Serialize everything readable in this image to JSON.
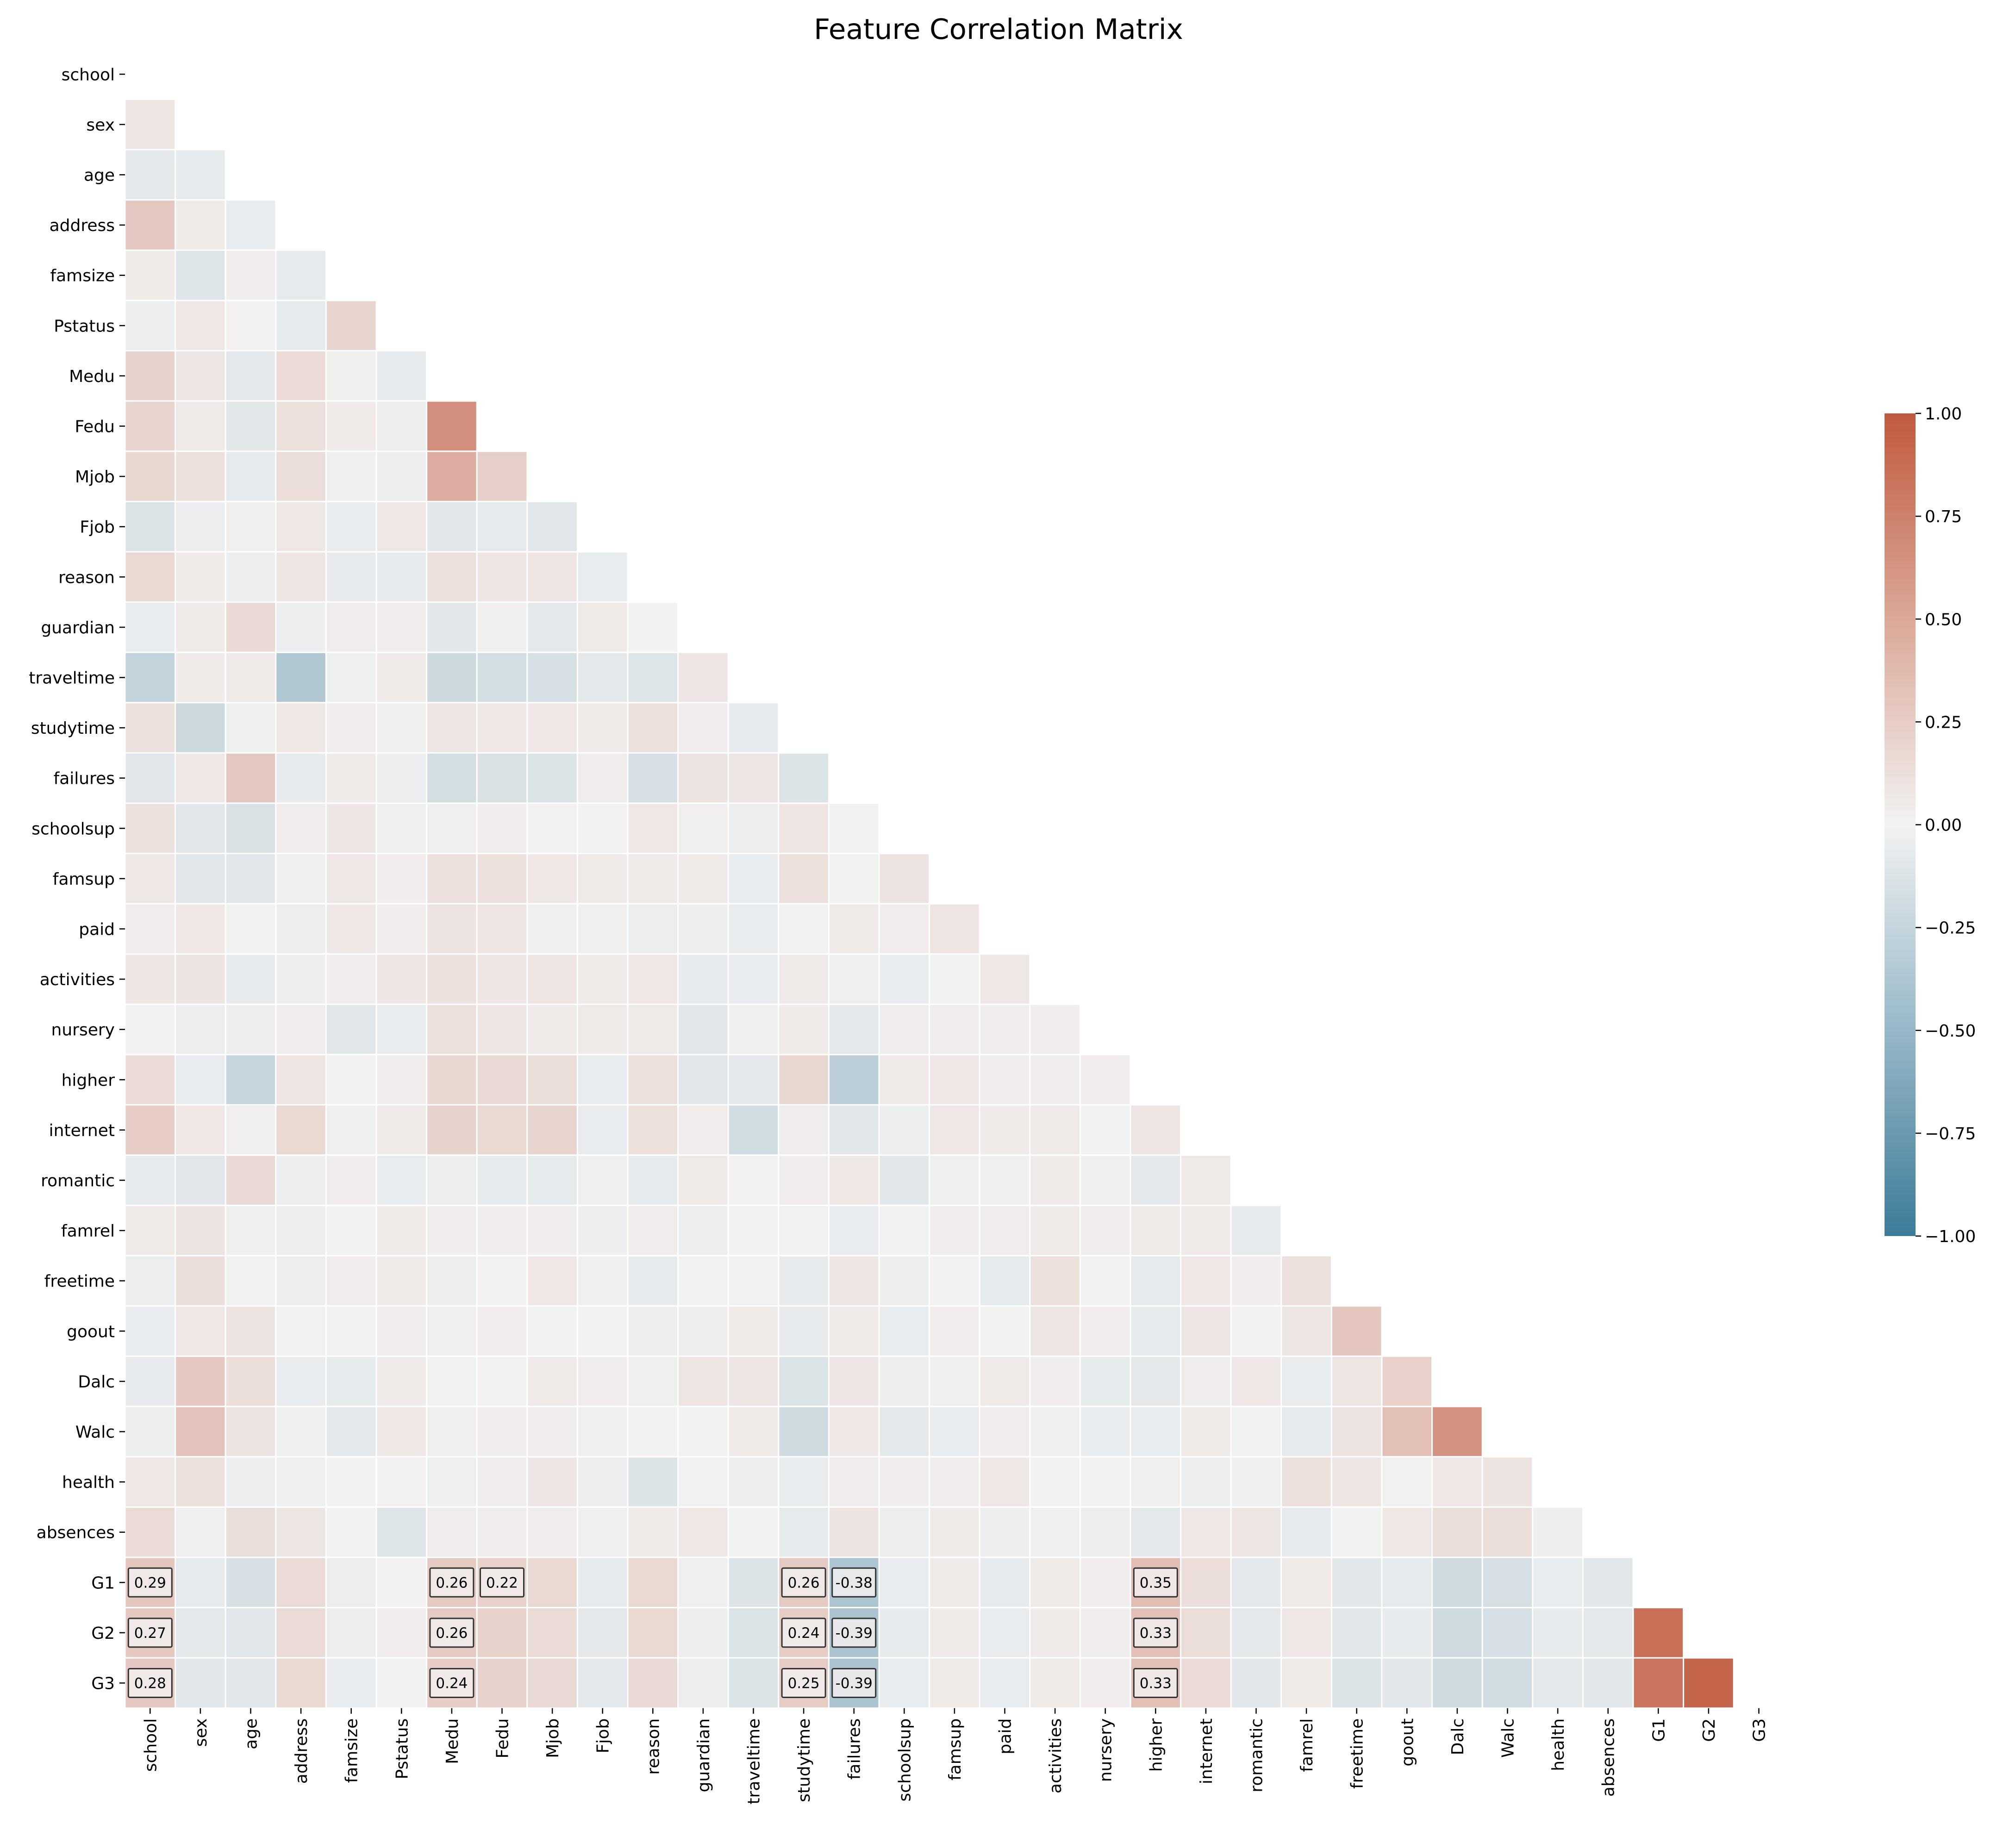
{
  "chart_data": {
    "type": "heatmap",
    "title": "Feature Correlation Matrix",
    "mask": "upper triangle incl. diagonal",
    "labels": [
      "school",
      "sex",
      "age",
      "address",
      "famsize",
      "Pstatus",
      "Medu",
      "Fedu",
      "Mjob",
      "Fjob",
      "reason",
      "guardian",
      "traveltime",
      "studytime",
      "failures",
      "schoolsup",
      "famsup",
      "paid",
      "activities",
      "nursery",
      "higher",
      "internet",
      "romantic",
      "famrel",
      "freetime",
      "goout",
      "Dalc",
      "Walc",
      "health",
      "absences",
      "G1",
      "G2",
      "G3"
    ],
    "colormap": {
      "negative": "#3d7b98",
      "zero": "#f2f2f2",
      "positive": "#c05a3e"
    },
    "colorbar": {
      "range": [
        -1,
        1
      ],
      "ticks": [
        1.0,
        0.75,
        0.5,
        0.25,
        0.0,
        -0.25,
        -0.5,
        -0.75,
        -1.0
      ],
      "tick_labels": [
        "1.00",
        "0.75",
        "0.50",
        "0.25",
        "0.00",
        "−0.25",
        "−0.50",
        "−0.75",
        "−1.00"
      ]
    },
    "annotation_threshold": 0.22,
    "annotation_format": "0.2f",
    "rows": [
      [],
      [
        0.09
      ],
      [
        -0.08,
        -0.06
      ],
      [
        0.28,
        0.05,
        -0.05
      ],
      [
        0.05,
        -0.11,
        0.03,
        -0.06
      ],
      [
        -0.04,
        0.07,
        0.01,
        -0.07,
        0.19
      ],
      [
        0.21,
        0.08,
        -0.08,
        0.15,
        0.02,
        -0.06
      ],
      [
        0.19,
        0.06,
        -0.09,
        0.12,
        0.05,
        -0.04,
        0.65
      ],
      [
        0.18,
        0.12,
        -0.07,
        0.14,
        -0.02,
        -0.04,
        0.46,
        0.23
      ],
      [
        -0.13,
        -0.04,
        0.02,
        0.07,
        -0.05,
        0.07,
        -0.09,
        -0.07,
        -0.1
      ],
      [
        0.17,
        0.05,
        -0.04,
        0.09,
        -0.06,
        -0.06,
        0.12,
        0.09,
        0.09,
        -0.05
      ],
      [
        -0.05,
        0.05,
        0.16,
        -0.03,
        0.04,
        0.03,
        -0.09,
        0.02,
        -0.08,
        0.06,
        0.0
      ],
      [
        -0.26,
        0.05,
        0.06,
        -0.36,
        -0.02,
        0.05,
        -0.21,
        -0.17,
        -0.15,
        -0.08,
        -0.11,
        0.08
      ],
      [
        0.12,
        -0.21,
        -0.02,
        0.07,
        0.03,
        -0.02,
        0.09,
        0.07,
        0.07,
        0.05,
        0.12,
        0.04,
        -0.06
      ],
      [
        -0.1,
        0.07,
        0.28,
        -0.06,
        0.05,
        -0.03,
        -0.17,
        -0.14,
        -0.12,
        0.04,
        -0.15,
        0.1,
        0.08,
        -0.12
      ],
      [
        0.11,
        -0.1,
        -0.14,
        0.04,
        0.08,
        -0.02,
        -0.02,
        0.03,
        0.01,
        0.01,
        0.07,
        0.02,
        -0.04,
        0.09,
        -0.01
      ],
      [
        0.07,
        -0.1,
        -0.1,
        -0.02,
        0.07,
        0.03,
        0.12,
        0.11,
        0.07,
        0.06,
        0.06,
        0.06,
        -0.05,
        0.12,
        -0.01,
        0.1
      ],
      [
        0.04,
        0.07,
        -0.01,
        -0.04,
        0.07,
        0.03,
        0.1,
        0.09,
        0.02,
        0.02,
        -0.04,
        -0.03,
        -0.05,
        -0.01,
        0.06,
        0.04,
        0.09
      ],
      [
        0.08,
        0.1,
        -0.06,
        -0.03,
        0.03,
        0.08,
        0.11,
        0.08,
        0.09,
        0.05,
        0.07,
        -0.06,
        -0.05,
        0.06,
        -0.02,
        -0.05,
        0.0,
        0.07
      ],
      [
        0.0,
        -0.04,
        -0.04,
        0.04,
        -0.1,
        -0.05,
        0.12,
        0.08,
        0.05,
        0.06,
        0.06,
        -0.1,
        -0.02,
        0.05,
        -0.08,
        0.04,
        0.04,
        0.03,
        0.03
      ],
      [
        0.15,
        -0.05,
        -0.24,
        0.09,
        0.0,
        0.03,
        0.18,
        0.16,
        0.14,
        -0.05,
        0.12,
        -0.1,
        -0.08,
        0.18,
        -0.3,
        0.06,
        0.07,
        0.03,
        0.03,
        0.04
      ],
      [
        0.24,
        0.07,
        0.02,
        0.17,
        -0.02,
        0.06,
        0.21,
        0.17,
        0.2,
        -0.05,
        0.12,
        0.04,
        -0.18,
        0.04,
        -0.09,
        -0.03,
        0.07,
        0.05,
        0.06,
        -0.01,
        0.08
      ],
      [
        -0.07,
        -0.1,
        0.16,
        -0.04,
        0.04,
        -0.05,
        -0.04,
        -0.06,
        -0.07,
        -0.02,
        -0.06,
        0.06,
        0.01,
        0.04,
        0.07,
        -0.09,
        -0.02,
        -0.02,
        0.05,
        -0.02,
        -0.08,
        0.06
      ],
      [
        0.06,
        0.1,
        -0.02,
        -0.04,
        0.0,
        0.06,
        0.03,
        0.03,
        0.03,
        -0.03,
        0.04,
        -0.04,
        -0.01,
        -0.01,
        -0.05,
        -0.01,
        0.03,
        0.04,
        0.05,
        0.04,
        0.05,
        0.06,
        -0.06
      ],
      [
        -0.04,
        0.13,
        -0.01,
        -0.04,
        0.04,
        0.05,
        -0.03,
        0.01,
        0.07,
        -0.02,
        -0.06,
        -0.01,
        -0.01,
        -0.06,
        0.08,
        -0.03,
        0.01,
        -0.07,
        0.11,
        -0.01,
        -0.07,
        0.07,
        0.03,
        0.11
      ],
      [
        -0.05,
        0.07,
        0.1,
        0.01,
        0.01,
        0.04,
        0.02,
        0.03,
        -0.01,
        -0.01,
        -0.03,
        -0.04,
        0.06,
        -0.06,
        0.05,
        -0.05,
        0.03,
        0.0,
        0.08,
        0.04,
        -0.06,
        0.08,
        0.0,
        0.08,
        0.29
      ],
      [
        -0.06,
        0.27,
        0.13,
        -0.05,
        -0.07,
        0.05,
        -0.01,
        0.01,
        0.06,
        0.04,
        -0.02,
        0.09,
        0.08,
        -0.12,
        0.08,
        -0.03,
        -0.02,
        0.06,
        0.03,
        -0.07,
        -0.08,
        0.04,
        0.07,
        -0.05,
        0.09,
        0.22
      ],
      [
        -0.03,
        0.3,
        0.1,
        -0.02,
        -0.08,
        0.07,
        -0.02,
        0.03,
        0.03,
        0.02,
        0.0,
        0.01,
        0.06,
        -0.19,
        0.07,
        -0.08,
        -0.05,
        0.04,
        0.02,
        -0.05,
        -0.05,
        0.06,
        -0.01,
        -0.06,
        0.1,
        0.33,
        0.63
      ],
      [
        0.07,
        0.12,
        -0.03,
        -0.02,
        0.0,
        0.01,
        -0.02,
        0.04,
        0.08,
        -0.04,
        -0.12,
        -0.01,
        -0.04,
        -0.05,
        0.04,
        0.03,
        0.03,
        0.07,
        0.0,
        0.0,
        0.02,
        -0.03,
        -0.02,
        0.11,
        0.08,
        -0.01,
        0.07,
        0.1
      ],
      [
        0.15,
        0.02,
        0.14,
        0.08,
        0.0,
        -0.11,
        0.04,
        0.04,
        0.04,
        0.02,
        0.05,
        0.07,
        -0.01,
        -0.07,
        0.1,
        -0.04,
        0.05,
        -0.03,
        -0.02,
        -0.04,
        -0.08,
        0.07,
        0.08,
        -0.06,
        -0.01,
        0.07,
        0.14,
        0.14,
        -0.03
      ],
      [
        0.29,
        -0.07,
        -0.15,
        0.15,
        -0.04,
        0.01,
        0.26,
        0.22,
        0.17,
        -0.07,
        0.17,
        -0.02,
        -0.12,
        0.26,
        -0.38,
        -0.05,
        0.05,
        -0.06,
        0.06,
        0.03,
        0.35,
        0.13,
        -0.08,
        0.06,
        -0.09,
        -0.07,
        -0.2,
        -0.16,
        -0.05,
        -0.09
      ],
      [
        0.27,
        -0.08,
        -0.1,
        0.15,
        -0.04,
        0.03,
        0.26,
        0.21,
        0.15,
        -0.08,
        0.17,
        -0.03,
        -0.13,
        0.24,
        -0.39,
        -0.06,
        0.05,
        -0.05,
        0.05,
        0.04,
        0.33,
        0.14,
        -0.08,
        0.07,
        -0.09,
        -0.06,
        -0.19,
        -0.16,
        -0.06,
        -0.08,
        0.86
      ],
      [
        0.28,
        -0.09,
        -0.1,
        0.17,
        -0.05,
        0.0,
        0.24,
        0.21,
        0.16,
        -0.08,
        0.16,
        -0.04,
        -0.13,
        0.25,
        -0.39,
        -0.05,
        0.06,
        -0.05,
        0.06,
        0.03,
        0.33,
        0.15,
        -0.09,
        0.06,
        -0.12,
        -0.09,
        -0.2,
        -0.18,
        -0.08,
        -0.09,
        0.83,
        0.92
      ]
    ]
  }
}
